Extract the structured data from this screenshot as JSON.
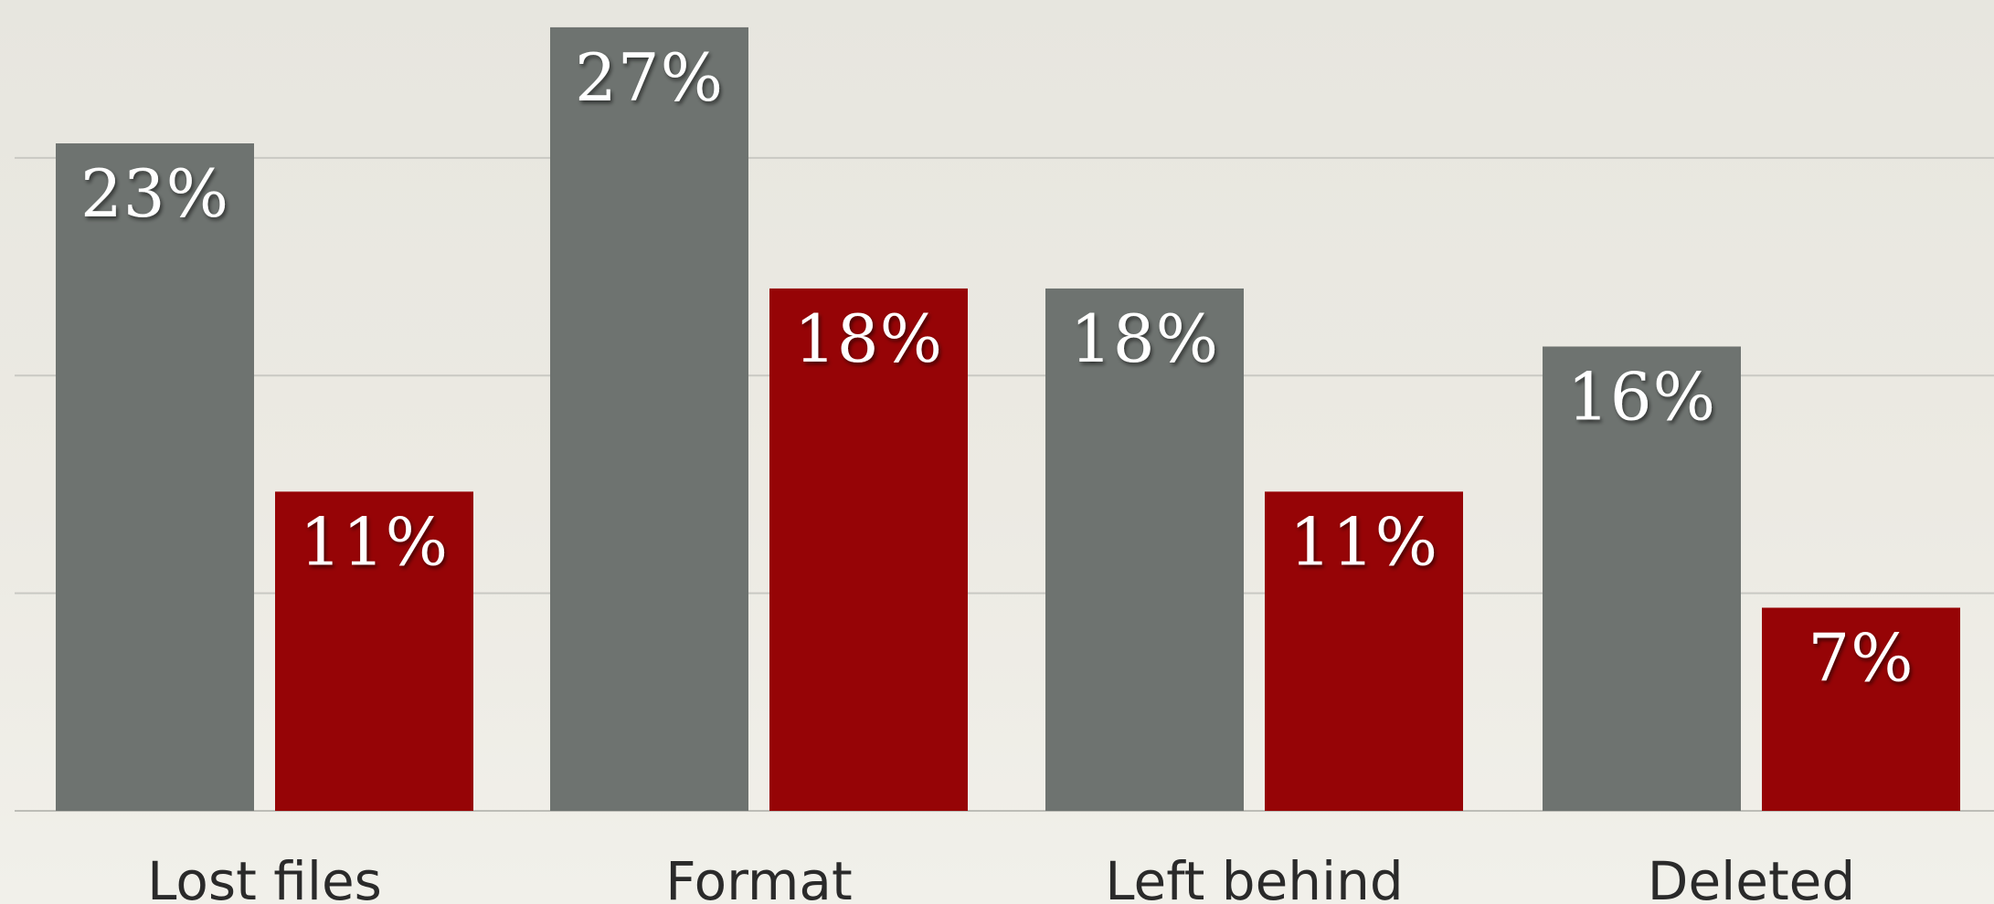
{
  "chart_data": {
    "type": "bar",
    "categories": [
      "Lost files",
      "Format",
      "Left behind",
      "Deleted"
    ],
    "series": [
      {
        "values": [
          23,
          27,
          18,
          16
        ],
        "color": "#6e7370"
      },
      {
        "values": [
          11,
          18,
          11,
          7
        ],
        "color": "#960406"
      }
    ],
    "data_labels": [
      [
        "23%",
        "27%",
        "18%",
        "16%"
      ],
      [
        "11%",
        "18%",
        "11%",
        "7%"
      ]
    ],
    "ylim": [
      0,
      27.5
    ],
    "gridlines": [
      7.5,
      15,
      22.5
    ],
    "grid": true,
    "legend": "none"
  }
}
